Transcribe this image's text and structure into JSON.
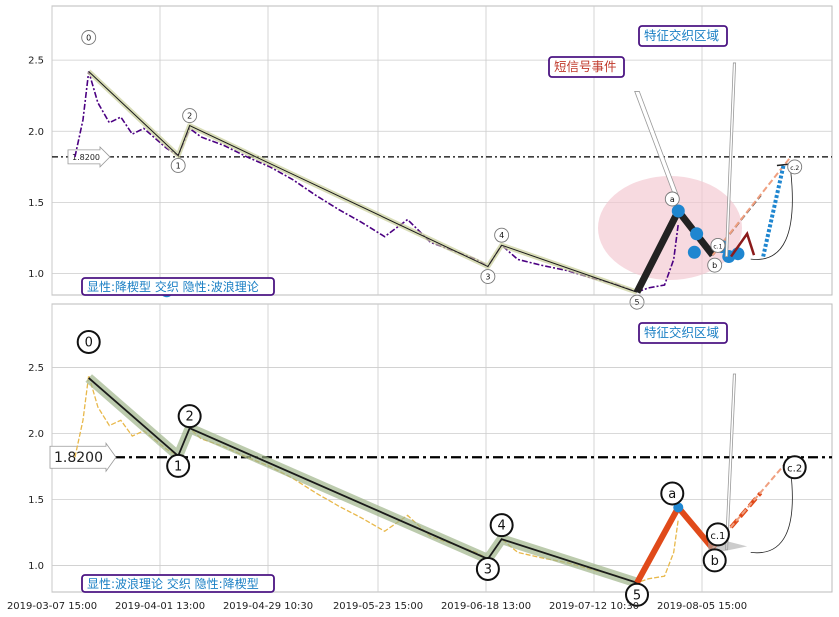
{
  "chart_data": [
    {
      "type": "line",
      "panel": "top",
      "ylim": [
        0.85,
        2.88
      ],
      "yticks": [
        "1.0",
        "1.5",
        "2.0",
        "2.5"
      ],
      "grid": true,
      "price_color": "#4b0082",
      "price": [
        {
          "x": 1.0,
          "y": 1.82
        },
        {
          "x": 1.35,
          "y": 2.08
        },
        {
          "x": 1.6,
          "y": 2.42
        },
        {
          "x": 2.0,
          "y": 2.2
        },
        {
          "x": 2.5,
          "y": 2.06
        },
        {
          "x": 3.0,
          "y": 2.1
        },
        {
          "x": 3.5,
          "y": 1.98
        },
        {
          "x": 4.0,
          "y": 2.02
        },
        {
          "x": 5.0,
          "y": 1.88
        },
        {
          "x": 5.5,
          "y": 1.83
        },
        {
          "x": 6.0,
          "y": 2.02
        },
        {
          "x": 6.5,
          "y": 1.96
        },
        {
          "x": 7.5,
          "y": 1.9
        },
        {
          "x": 8.5,
          "y": 1.82
        },
        {
          "x": 9.5,
          "y": 1.75
        },
        {
          "x": 10.5,
          "y": 1.66
        },
        {
          "x": 11.5,
          "y": 1.55
        },
        {
          "x": 12.5,
          "y": 1.45
        },
        {
          "x": 13.5,
          "y": 1.36
        },
        {
          "x": 14.5,
          "y": 1.26
        },
        {
          "x": 15.5,
          "y": 1.38
        },
        {
          "x": 16.5,
          "y": 1.22
        },
        {
          "x": 17.5,
          "y": 1.16
        },
        {
          "x": 18.5,
          "y": 1.1
        },
        {
          "x": 19.0,
          "y": 1.05
        },
        {
          "x": 19.6,
          "y": 1.2
        },
        {
          "x": 20.3,
          "y": 1.1
        },
        {
          "x": 21.3,
          "y": 1.06
        },
        {
          "x": 22.5,
          "y": 1.02
        },
        {
          "x": 23.5,
          "y": 0.97
        },
        {
          "x": 24.5,
          "y": 0.93
        },
        {
          "x": 25.5,
          "y": 0.87
        },
        {
          "x": 26.0,
          "y": 0.9
        },
        {
          "x": 26.7,
          "y": 0.92
        },
        {
          "x": 27.1,
          "y": 1.1
        },
        {
          "x": 27.3,
          "y": 1.35
        }
      ],
      "legend_box": {
        "text": "显性:降楔型 交织 隐性:波浪理论",
        "text_color": "#1a7fc4",
        "border_color": "#4b1482",
        "position": "bottom-left"
      },
      "annotations": [
        {
          "text": "特征交织区域",
          "color": "#1a7fc4",
          "border": "#4b1482"
        },
        {
          "text": "短信号事件",
          "color": "#c0392b",
          "border": "#4b1482"
        }
      ]
    },
    {
      "type": "line",
      "panel": "bottom",
      "ylim": [
        0.8,
        2.98
      ],
      "yticks": [
        "1.0",
        "1.5",
        "2.0",
        "2.5"
      ],
      "grid": true,
      "price_color": "#e8b84a",
      "price": [
        {
          "x": 1.0,
          "y": 1.82
        },
        {
          "x": 1.35,
          "y": 2.1
        },
        {
          "x": 1.6,
          "y": 2.44
        },
        {
          "x": 2.0,
          "y": 2.2
        },
        {
          "x": 2.5,
          "y": 2.06
        },
        {
          "x": 3.0,
          "y": 2.1
        },
        {
          "x": 3.5,
          "y": 1.98
        },
        {
          "x": 4.0,
          "y": 2.02
        },
        {
          "x": 5.0,
          "y": 1.88
        },
        {
          "x": 5.5,
          "y": 1.83
        },
        {
          "x": 6.0,
          "y": 2.04
        },
        {
          "x": 6.5,
          "y": 1.96
        },
        {
          "x": 7.5,
          "y": 1.9
        },
        {
          "x": 8.5,
          "y": 1.82
        },
        {
          "x": 9.5,
          "y": 1.75
        },
        {
          "x": 10.5,
          "y": 1.66
        },
        {
          "x": 11.5,
          "y": 1.55
        },
        {
          "x": 12.5,
          "y": 1.45
        },
        {
          "x": 13.5,
          "y": 1.36
        },
        {
          "x": 14.5,
          "y": 1.26
        },
        {
          "x": 15.5,
          "y": 1.38
        },
        {
          "x": 16.5,
          "y": 1.22
        },
        {
          "x": 17.5,
          "y": 1.16
        },
        {
          "x": 18.5,
          "y": 1.1
        },
        {
          "x": 19.0,
          "y": 1.05
        },
        {
          "x": 19.6,
          "y": 1.2
        },
        {
          "x": 20.3,
          "y": 1.1
        },
        {
          "x": 21.3,
          "y": 1.06
        },
        {
          "x": 22.5,
          "y": 1.02
        },
        {
          "x": 23.5,
          "y": 0.97
        },
        {
          "x": 24.5,
          "y": 0.93
        },
        {
          "x": 25.5,
          "y": 0.87
        },
        {
          "x": 26.0,
          "y": 0.9
        },
        {
          "x": 26.7,
          "y": 0.92
        },
        {
          "x": 27.1,
          "y": 1.1
        },
        {
          "x": 27.3,
          "y": 1.35
        }
      ],
      "legend_box": {
        "text": "显性:波浪理论 交织 隐性:降楔型",
        "text_color": "#1a7fc4",
        "border_color": "#4b1482",
        "position": "bottom-left"
      },
      "annotations": [
        {
          "text": "特征交织区域",
          "color": "#1a7fc4",
          "border": "#4b1482"
        }
      ]
    }
  ],
  "x_tick_labels": [
    "2019-03-07 15:00",
    "2019-04-01 13:00",
    "2019-04-29 10:30",
    "2019-05-23 15:00",
    "2019-06-18 13:00",
    "2019-07-12 10:30",
    "2019-08-05 15:00"
  ],
  "threshold": {
    "value": 1.82,
    "label": "1.8200"
  },
  "wave_labels": [
    "0",
    "1",
    "2",
    "3",
    "4",
    "5",
    "a",
    "b",
    "c.1",
    "c.2"
  ],
  "wave_points": [
    {
      "label": "0",
      "x": 1.6,
      "y": 2.42
    },
    {
      "label": "1",
      "x": 5.5,
      "y": 1.83
    },
    {
      "label": "2",
      "x": 6.0,
      "y": 2.04
    },
    {
      "label": "3",
      "x": 19.0,
      "y": 1.05
    },
    {
      "label": "4",
      "x": 19.6,
      "y": 1.2
    },
    {
      "label": "5",
      "x": 25.5,
      "y": 0.87
    },
    {
      "label": "a",
      "x": 27.3,
      "y": 1.44
    },
    {
      "label": "b",
      "x": 28.8,
      "y": 1.13
    },
    {
      "label": "c.1",
      "x": 29.2,
      "y": 1.1
    },
    {
      "label": "c.2",
      "x": 32.2,
      "y": 1.82
    }
  ],
  "colors": {
    "grid": "#cccccc",
    "wave_line": "#1a1a1a",
    "wave_halo_top": "#c9cf9a",
    "wave_halo_bottom": "#9fb58a",
    "abc_top": "#222222",
    "abc_bottom": "#e04a1a",
    "marker": "#1f86d0",
    "ellipse": "#f2c6cf",
    "threshold": "#000000"
  }
}
